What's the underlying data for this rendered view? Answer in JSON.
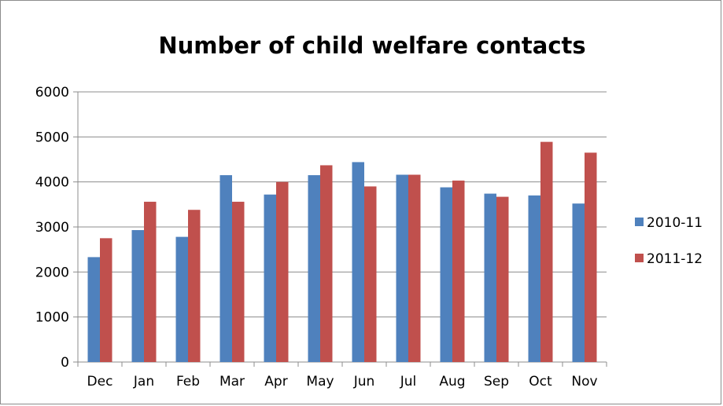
{
  "chart_data": {
    "type": "bar",
    "title": "Number of child welfare contacts",
    "xlabel": "",
    "ylabel": "",
    "categories": [
      "Dec",
      "Jan",
      "Feb",
      "Mar",
      "Apr",
      "May",
      "Jun",
      "Jul",
      "Aug",
      "Sep",
      "Oct",
      "Nov"
    ],
    "series": [
      {
        "name": "2010-11",
        "color": "#4f81bd",
        "values": [
          2330,
          2930,
          2780,
          4150,
          3720,
          4150,
          4440,
          4160,
          3880,
          3740,
          3700,
          3520
        ]
      },
      {
        "name": "2011-12",
        "color": "#c0504d",
        "values": [
          2750,
          3560,
          3380,
          3560,
          4000,
          4370,
          3900,
          4160,
          4030,
          3670,
          4890,
          4650
        ]
      }
    ],
    "ylim": [
      0,
      6000
    ],
    "yticks": [
      0,
      1000,
      2000,
      3000,
      4000,
      5000,
      6000
    ],
    "grid": true,
    "legend": "right"
  }
}
